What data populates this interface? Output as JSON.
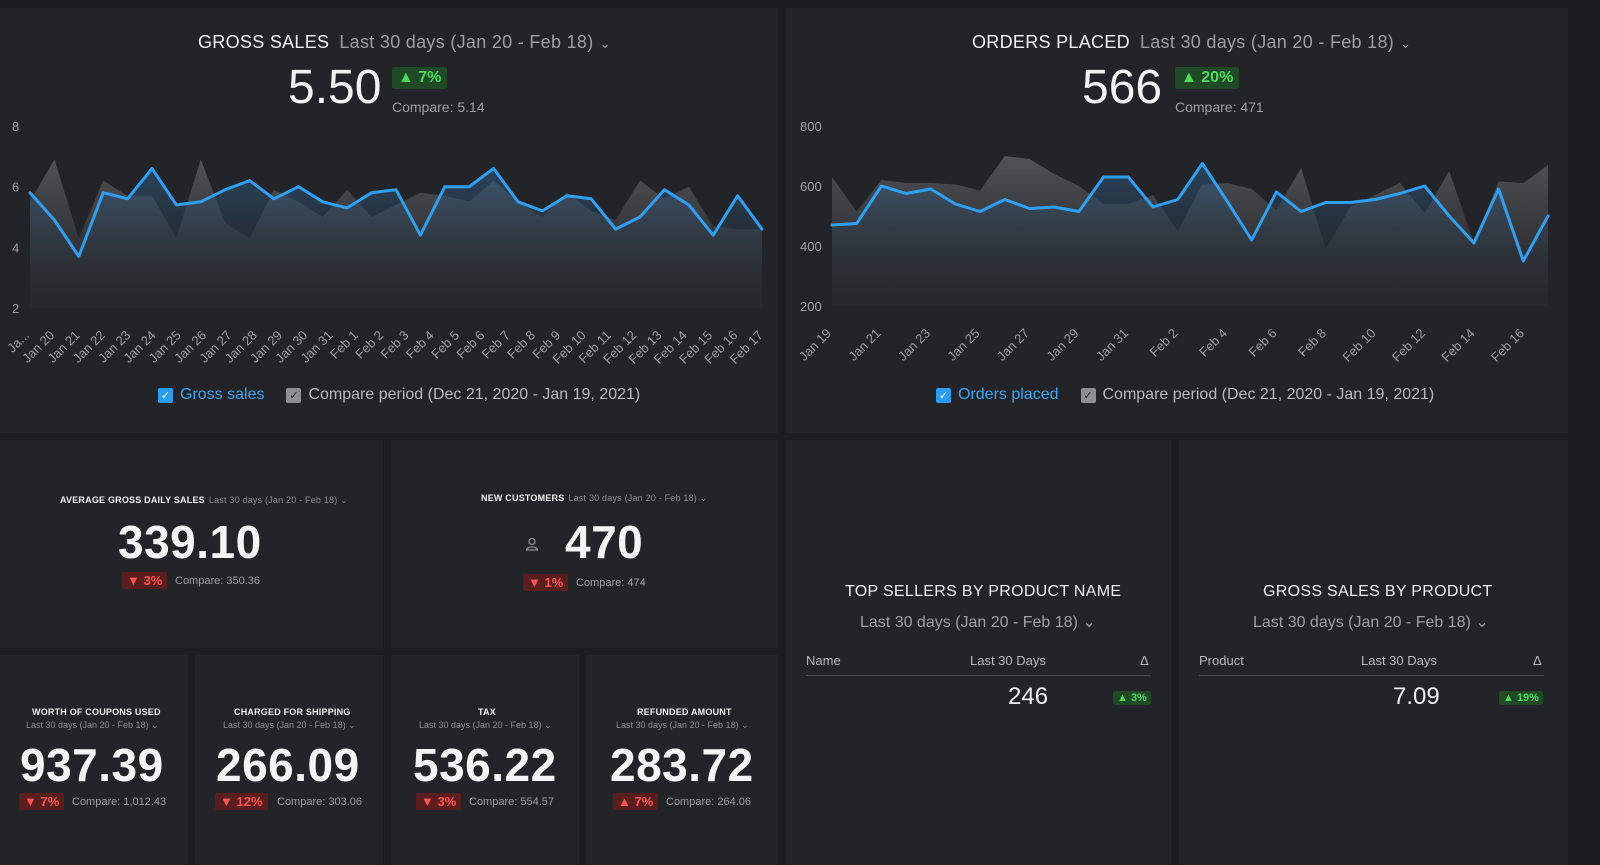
{
  "panels": {
    "gross_sales": {
      "title": "GROSS SALES",
      "range": "Last 30 days (Jan 20 - Feb 18)",
      "value": "5.50",
      "change": "▲ 7%",
      "compare": "Compare: 5.14",
      "legend_primary": "Gross sales",
      "legend_compare": "Compare period (Dec 21, 2020 - Jan 19, 2021)"
    },
    "orders_placed": {
      "title": "ORDERS PLACED",
      "range": "Last 30 days (Jan 20 - Feb 18)",
      "value": "566",
      "change": "▲ 20%",
      "compare": "Compare: 471",
      "legend_primary": "Orders placed",
      "legend_compare": "Compare period (Dec 21, 2020 - Jan 19, 2021)"
    },
    "avg_gross_daily": {
      "title": "AVERAGE GROSS DAILY SALES",
      "range": "Last 30 days (Jan 20 - Feb 18) ⌄",
      "value": "339.10",
      "change": "▼ 3%",
      "compare": "Compare: 350.36"
    },
    "new_customers": {
      "title": "NEW CUSTOMERS",
      "range": "Last 30 days (Jan 20 - Feb 18) ⌄",
      "value": "470",
      "change": "▼ 1%",
      "compare": "Compare: 474"
    },
    "coupons": {
      "title": "WORTH OF COUPONS USED",
      "range": "Last 30 days (Jan 20 - Feb 18) ⌄",
      "value": "937.39",
      "change": "▼ 7%",
      "compare": "Compare: 1,012.43"
    },
    "shipping": {
      "title": "CHARGED FOR SHIPPING",
      "range": "Last 30 days (Jan 20 - Feb 18) ⌄",
      "value": "266.09",
      "change": "▼ 12%",
      "compare": "Compare: 303.06"
    },
    "tax": {
      "title": "TAX",
      "range": "Last 30 days (Jan 20 - Feb 18) ⌄",
      "value": "536.22",
      "change": "▼ 3%",
      "compare": "Compare: 554.57"
    },
    "refunded": {
      "title": "REFUNDED AMOUNT",
      "range": "Last 30 days (Jan 20 - Feb 18) ⌄",
      "value": "283.72",
      "change": "▲ 7%",
      "compare": "Compare: 264.06"
    },
    "top_sellers": {
      "title": "TOP SELLERS BY PRODUCT NAME",
      "range": "Last 30 days (Jan 20 - Feb 18) ⌄",
      "col_name": "Name",
      "col_period": "Last 30 Days",
      "col_delta": "Δ",
      "row_value": "246",
      "row_change": "▲ 3%"
    },
    "gross_by_product": {
      "title": "GROSS SALES BY PRODUCT",
      "range": "Last 30 days (Jan 20 - Feb 18) ⌄",
      "col_name": "Product",
      "col_period": "Last 30 Days",
      "col_delta": "Δ",
      "row_value": "7.09",
      "row_change": "▲ 19%"
    }
  },
  "colors": {
    "primary_line": "#2f9ff2",
    "compare_area": "#4a4b4f",
    "up": "#4ddb5f",
    "down": "#ff5252"
  },
  "chart_data": [
    {
      "type": "area",
      "title": "GROSS SALES",
      "ylim": [
        2,
        8
      ],
      "yticks": [
        "2",
        "4",
        "6",
        "8"
      ],
      "x": [
        "Jan 19",
        "Jan 20",
        "Jan 21",
        "Jan 22",
        "Jan 23",
        "Jan 24",
        "Jan 25",
        "Jan 26",
        "Jan 27",
        "Jan 28",
        "Jan 29",
        "Jan 30",
        "Jan 31",
        "Feb 1",
        "Feb 2",
        "Feb 3",
        "Feb 4",
        "Feb 5",
        "Feb 6",
        "Feb 7",
        "Feb 8",
        "Feb 9",
        "Feb 10",
        "Feb 11",
        "Feb 12",
        "Feb 13",
        "Feb 14",
        "Feb 15",
        "Feb 16",
        "Feb 17",
        "Feb 18"
      ],
      "xtick_labels": [
        "Ja...",
        "Jan 20",
        "Jan 21",
        "Jan 22",
        "Jan 23",
        "Jan 24",
        "Jan 25",
        "Jan 26",
        "Jan 27",
        "Jan 28",
        "Jan 29",
        "Jan 30",
        "Jan 31",
        "Feb 1",
        "Feb 2",
        "Feb 3",
        "Feb 4",
        "Feb 5",
        "Feb 6",
        "Feb 7",
        "Feb 8",
        "Feb 9",
        "Feb 10",
        "Feb 11",
        "Feb 12",
        "Feb 13",
        "Feb 14",
        "Feb 15",
        "Feb 16",
        "Feb 17"
      ],
      "series": [
        {
          "name": "Gross sales",
          "values": [
            5.8,
            4.9,
            3.7,
            5.8,
            5.6,
            6.6,
            5.4,
            5.5,
            5.9,
            6.2,
            5.6,
            6.0,
            5.5,
            5.3,
            5.8,
            5.9,
            4.4,
            6.0,
            6.0,
            6.6,
            5.5,
            5.2,
            5.7,
            5.6,
            4.6,
            5.0,
            5.9,
            5.4,
            4.4,
            5.7,
            4.6
          ]
        },
        {
          "name": "Compare period (Dec 21, 2020 - Jan 19, 2021)",
          "values": [
            5.5,
            6.9,
            4.3,
            6.2,
            5.7,
            5.7,
            4.3,
            6.9,
            4.8,
            4.3,
            5.9,
            5.5,
            5.0,
            5.9,
            5.0,
            5.4,
            5.8,
            5.7,
            5.5,
            6.2,
            5.5,
            5.0,
            5.8,
            5.2,
            4.9,
            6.2,
            5.6,
            6.0,
            4.7,
            4.6,
            4.6
          ]
        }
      ]
    },
    {
      "type": "area",
      "title": "ORDERS PLACED",
      "ylim": [
        200,
        800
      ],
      "yticks": [
        "200",
        "400",
        "600",
        "800"
      ],
      "x": [
        "Jan 19",
        "Jan 20",
        "Jan 21",
        "Jan 22",
        "Jan 23",
        "Jan 24",
        "Jan 25",
        "Jan 26",
        "Jan 27",
        "Jan 28",
        "Jan 29",
        "Jan 30",
        "Jan 31",
        "Feb 1",
        "Feb 2",
        "Feb 3",
        "Feb 4",
        "Feb 5",
        "Feb 6",
        "Feb 7",
        "Feb 8",
        "Feb 9",
        "Feb 10",
        "Feb 11",
        "Feb 12",
        "Feb 13",
        "Feb 14",
        "Feb 15",
        "Feb 16",
        "Feb 17"
      ],
      "xtick_labels": [
        "Jan 19",
        "Jan 21",
        "Jan 23",
        "Jan 25",
        "Jan 27",
        "Jan 29",
        "Jan 31",
        "Feb 2",
        "Feb 4",
        "Feb 6",
        "Feb 8",
        "Feb 10",
        "Feb 12",
        "Feb 14",
        "Feb 16"
      ],
      "series": [
        {
          "name": "Orders placed",
          "values": [
            470,
            475,
            600,
            575,
            590,
            540,
            515,
            555,
            525,
            530,
            515,
            630,
            630,
            530,
            555,
            675,
            550,
            420,
            580,
            515,
            545,
            545,
            555,
            575,
            600,
            500,
            410,
            590,
            350,
            500
          ]
        },
        {
          "name": "Compare period (Dec 21, 2020 - Jan 19, 2021)",
          "values": [
            630,
            515,
            620,
            610,
            610,
            605,
            585,
            700,
            690,
            640,
            600,
            540,
            540,
            570,
            450,
            605,
            610,
            590,
            520,
            660,
            390,
            530,
            570,
            610,
            510,
            650,
            410,
            615,
            610,
            670
          ]
        }
      ]
    }
  ]
}
